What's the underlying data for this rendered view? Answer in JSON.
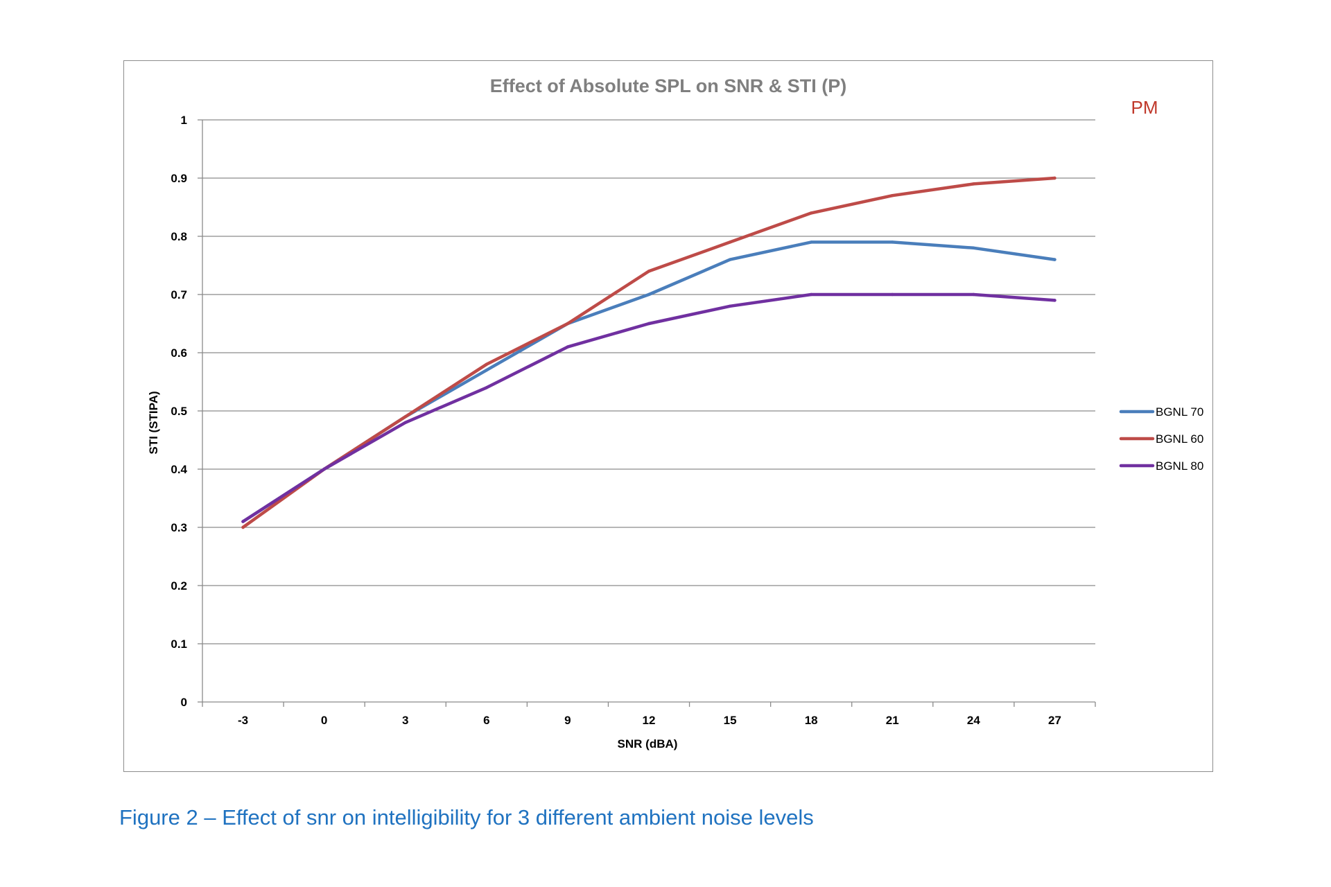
{
  "caption": "Figure 2 – Effect of snr on intelligibility for 3 different ambient noise levels",
  "annotation": "PM",
  "chart_data": {
    "type": "line",
    "title": "Effect of Absolute  SPL on SNR & STI (P)",
    "xlabel": "SNR (dBA)",
    "ylabel": "STI (STIPA)",
    "x": [
      "-3",
      "0",
      "3",
      "6",
      "9",
      "12",
      "15",
      "18",
      "21",
      "24",
      "27"
    ],
    "y_ticks": [
      "0",
      "0.1",
      "0.2",
      "0.3",
      "0.4",
      "0.5",
      "0.6",
      "0.7",
      "0.8",
      "0.9",
      "1"
    ],
    "ylim": [
      0,
      1
    ],
    "grid": "horizontal",
    "legend_position": "right",
    "series": [
      {
        "name": "BGNL 70",
        "color": "#4a7ebb",
        "values": [
          0.31,
          0.4,
          0.49,
          0.57,
          0.65,
          0.7,
          0.76,
          0.79,
          0.79,
          0.78,
          0.76
        ]
      },
      {
        "name": "BGNL 60",
        "color": "#be4b48",
        "values": [
          0.3,
          0.4,
          0.49,
          0.58,
          0.65,
          0.74,
          0.79,
          0.84,
          0.87,
          0.89,
          0.9
        ]
      },
      {
        "name": "BGNL 80",
        "color": "#7030a0",
        "values": [
          0.31,
          0.4,
          0.48,
          0.54,
          0.61,
          0.65,
          0.68,
          0.7,
          0.7,
          0.7,
          0.69
        ]
      }
    ]
  }
}
